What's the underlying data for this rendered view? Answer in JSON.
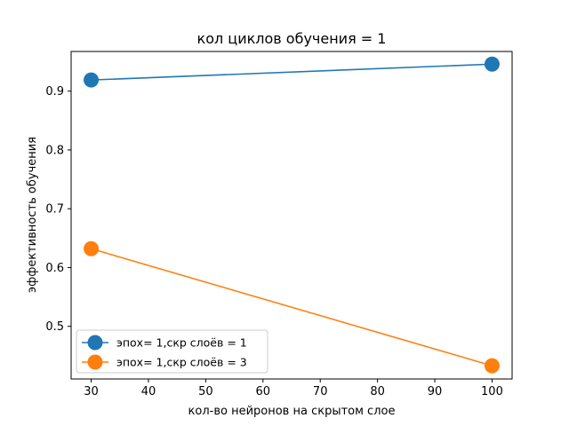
{
  "chart_data": {
    "type": "line",
    "title": "кол циклов обучения = 1",
    "xlabel": "кол-во нейронов на скрытом слое",
    "ylabel": "эффективность обучения",
    "x": [
      30,
      100
    ],
    "xlim": [
      26.5,
      103.5
    ],
    "ylim": [
      0.4105,
      0.9675
    ],
    "xticks": [
      30,
      40,
      50,
      60,
      70,
      80,
      90,
      100
    ],
    "yticks": [
      0.5,
      0.6,
      0.7,
      0.8,
      0.9
    ],
    "grid": false,
    "legend_position": "lower-left",
    "series": [
      {
        "name": "эпох= 1,скр слоёв = 1",
        "values": [
          0.919,
          0.946
        ],
        "color": "#1f77b4",
        "marker": "circle"
      },
      {
        "name": "эпох= 1,скр слоёв = 3",
        "values": [
          0.632,
          0.433
        ],
        "color": "#ff7f0e",
        "marker": "circle"
      }
    ]
  }
}
